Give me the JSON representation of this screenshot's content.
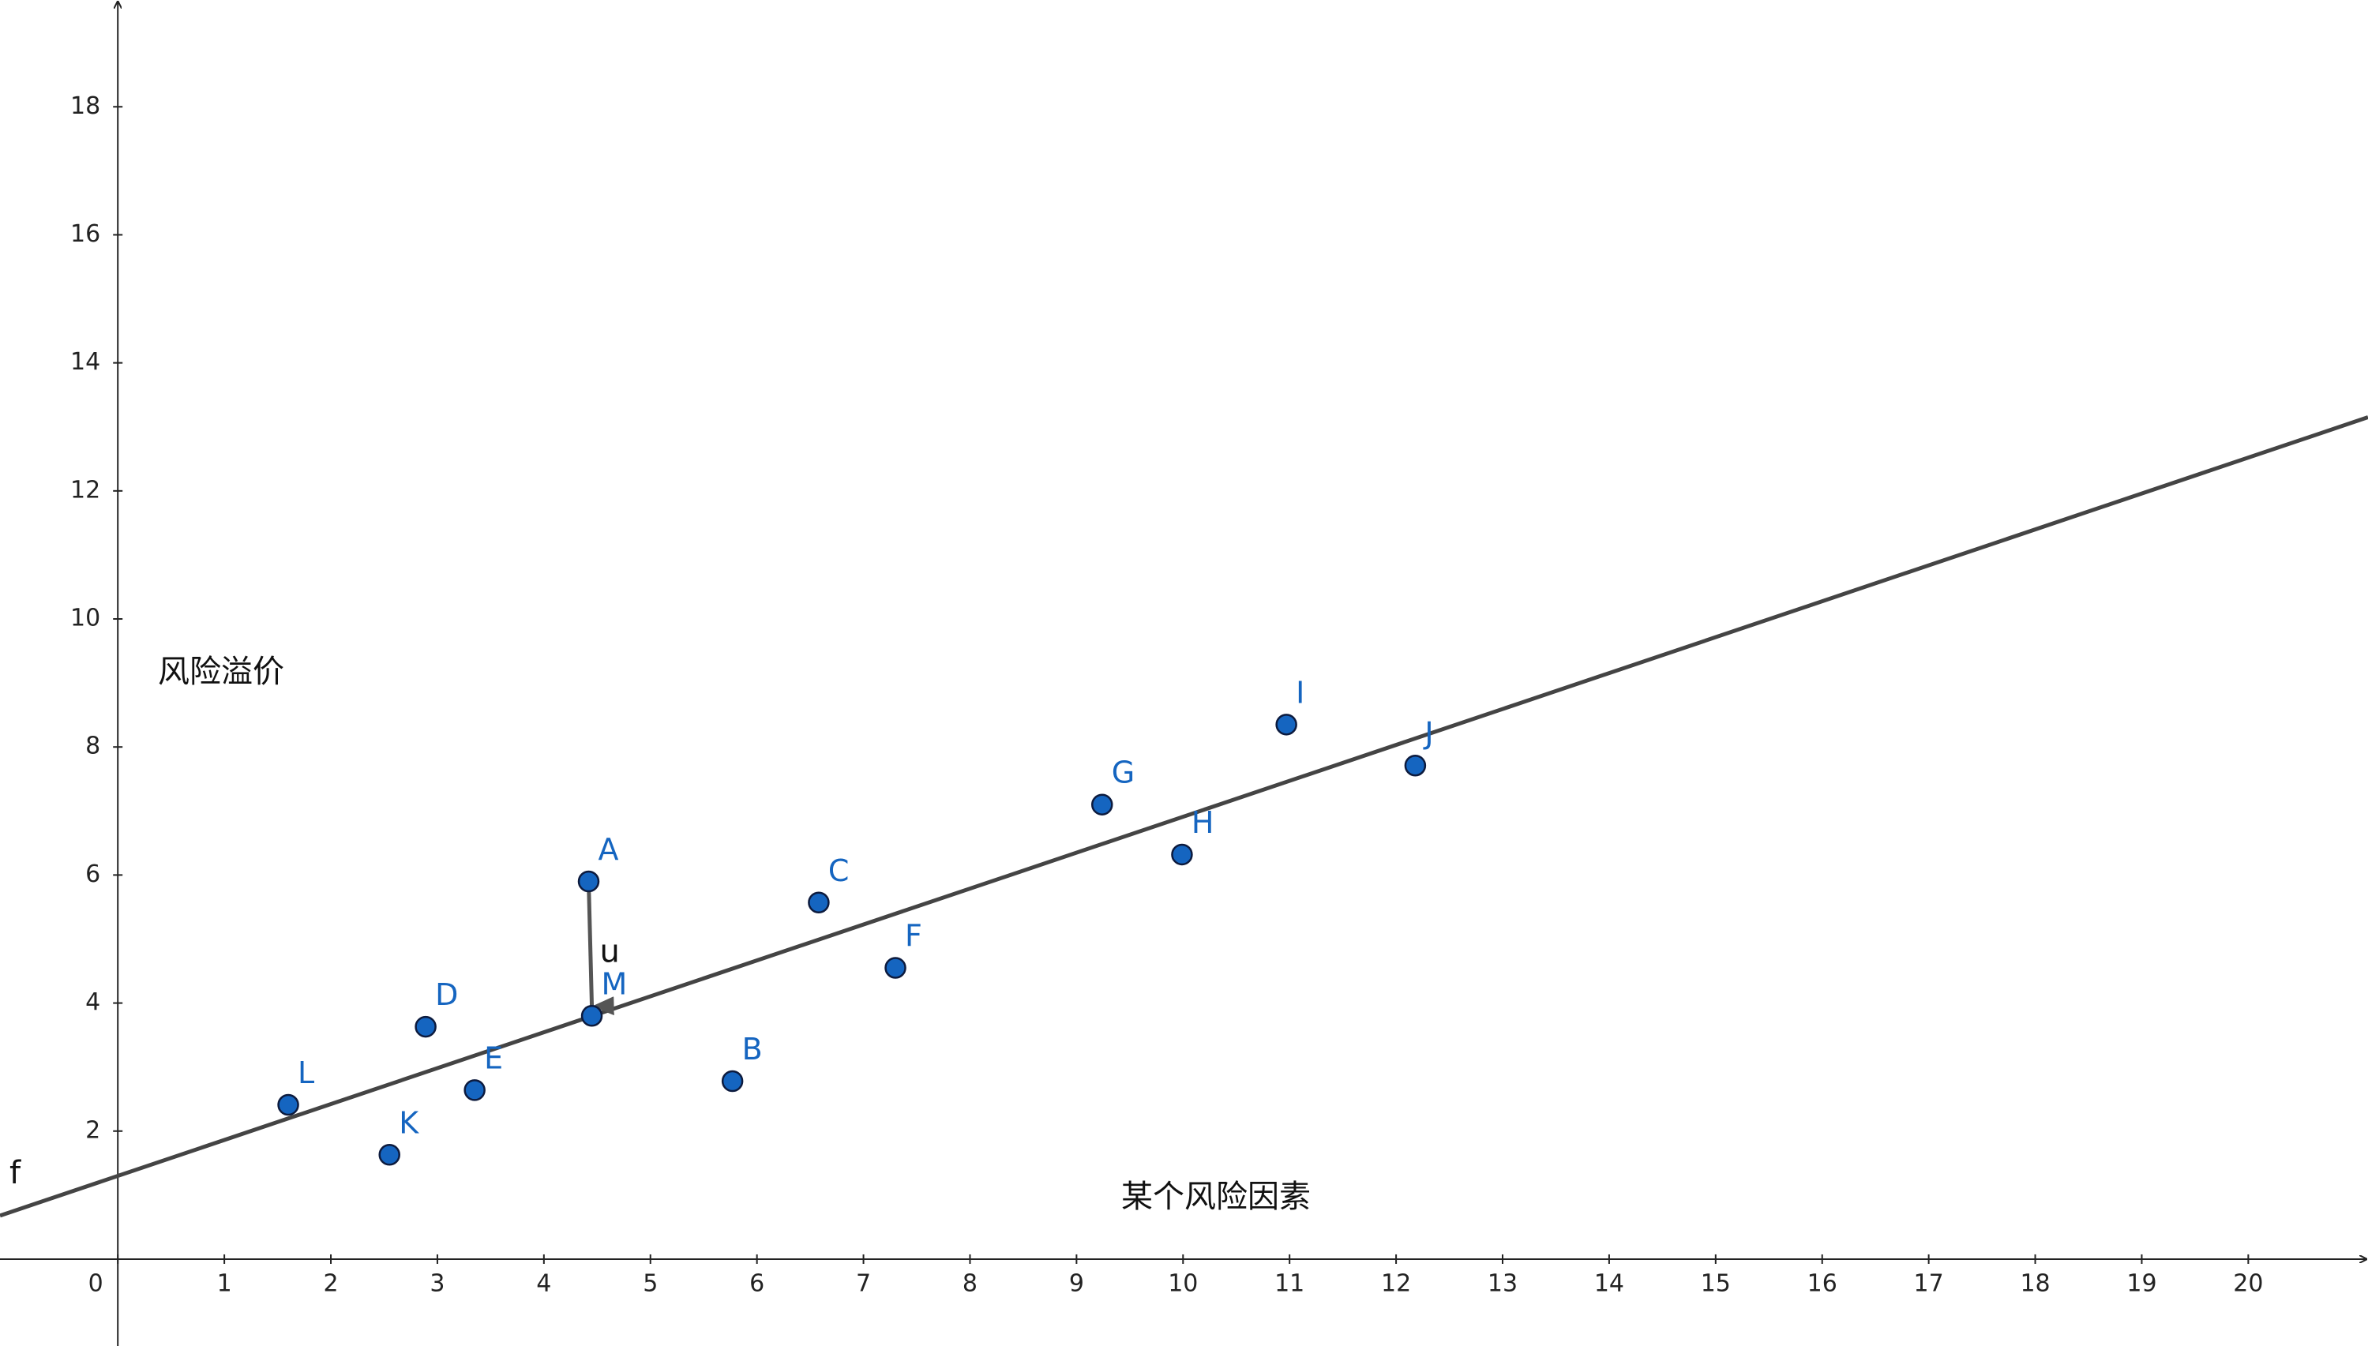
{
  "chart_data": {
    "type": "scatter",
    "x_label": "某个风险因素",
    "y_label": "风险溢价",
    "point_names": [
      "A",
      "B",
      "C",
      "D",
      "E",
      "F",
      "G",
      "H",
      "I",
      "J",
      "K",
      "L",
      "M"
    ],
    "x": [
      4.42,
      5.77,
      6.58,
      2.89,
      3.35,
      7.3,
      9.24,
      9.99,
      10.97,
      12.18,
      2.55,
      1.6,
      4.45
    ],
    "values": [
      5.9,
      2.78,
      5.57,
      3.63,
      2.64,
      4.55,
      7.1,
      6.32,
      8.35,
      7.71,
      1.63,
      2.41,
      3.8
    ],
    "color": "#1565c0",
    "line": {
      "label": "f",
      "x": [
        0,
        20
      ],
      "y": [
        1.3,
        12.52
      ],
      "color": "#444444"
    },
    "vector": {
      "label": "u",
      "x": [
        4.42,
        4.45
      ],
      "y": [
        5.9,
        3.8
      ]
    },
    "xlim": [
      -1.106,
      21.124
    ],
    "ylim": [
      -1.357,
      19.668
    ],
    "xticks": [
      0,
      1,
      2,
      3,
      4,
      5,
      6,
      7,
      8,
      9,
      10,
      11,
      12,
      13,
      14,
      15,
      16,
      17,
      18,
      19,
      20
    ],
    "yticks": [
      2,
      4,
      6,
      8,
      10,
      12,
      14,
      16,
      18
    ]
  }
}
